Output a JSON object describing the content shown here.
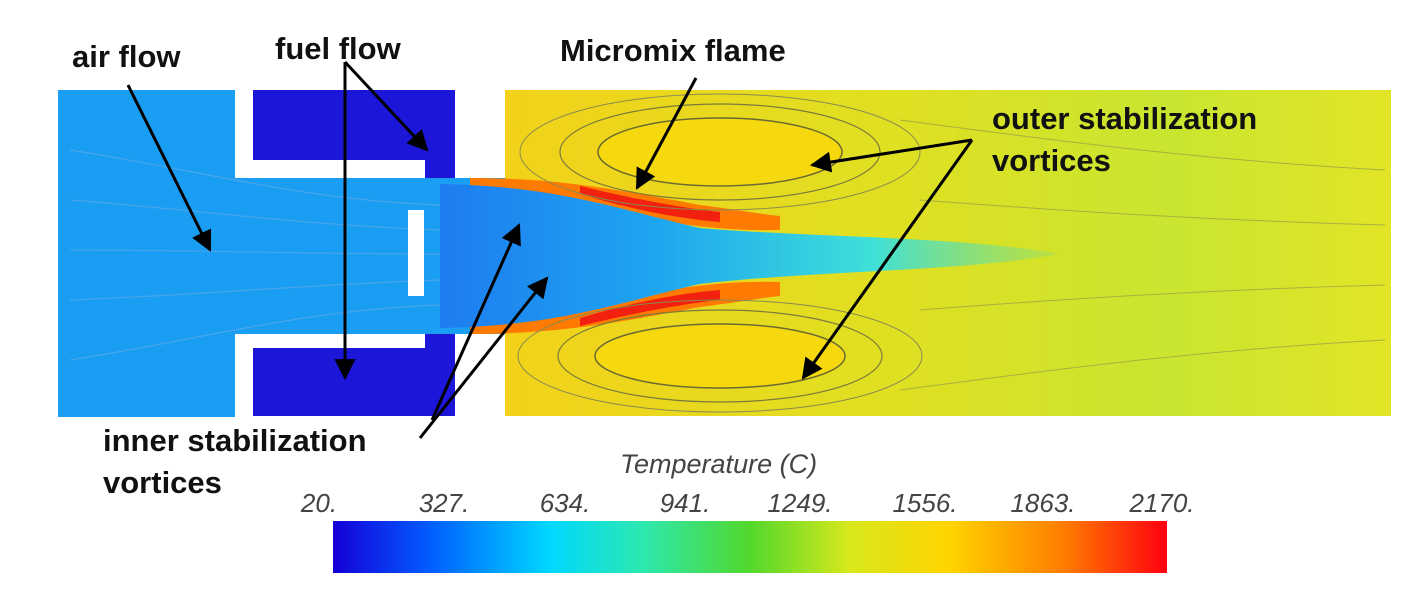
{
  "labels": {
    "air_flow": "air flow",
    "fuel_flow": "fuel flow",
    "micromix_flame": "Micromix flame",
    "outer_vortices_line1": "outer stabilization",
    "outer_vortices_line2": "vortices",
    "inner_vortices_line1": "inner stabilization",
    "inner_vortices_line2": "vortices"
  },
  "legend": {
    "title": "Temperature (C)",
    "ticks": [
      "20.",
      "327.",
      "634.",
      "941.",
      "1249.",
      "1556.",
      "1863.",
      "2170."
    ],
    "min": 20,
    "max": 2170,
    "colormap": [
      "#1400d8",
      "#0060ff",
      "#00d8ff",
      "#2ce8b0",
      "#52d82c",
      "#d8e81c",
      "#ffd400",
      "#ff7a00",
      "#ff0010"
    ]
  }
}
